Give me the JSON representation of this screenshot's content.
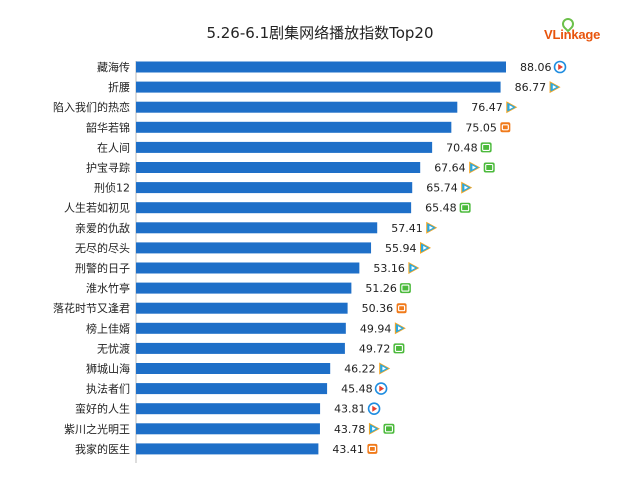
{
  "brand": {
    "logo_text": "VLinkage"
  },
  "colors": {
    "bar": "#1e6fc8",
    "axis": "#bbbbbb"
  },
  "chart_data": {
    "type": "bar",
    "orientation": "horizontal",
    "title": "5.26-6.1剧集网络播放指数Top20",
    "xlabel": "",
    "ylabel": "",
    "xlim": [
      0,
      90
    ],
    "grid": false,
    "categories": [
      "藏海传",
      "折腰",
      "陷入我们的热恋",
      "韶华若锦",
      "在人间",
      "护宝寻踪",
      "刑侦12",
      "人生若如初见",
      "亲爱的仇敌",
      "无尽的尽头",
      "刑警的日子",
      "淮水竹亭",
      "落花时节又逢君",
      "榜上佳婿",
      "无忧渡",
      "狮城山海",
      "执法者们",
      "蛮好的人生",
      "紫川之光明王",
      "我家的医生"
    ],
    "values": [
      88.06,
      86.77,
      76.47,
      75.05,
      70.48,
      67.64,
      65.74,
      65.48,
      57.41,
      55.94,
      53.16,
      51.26,
      50.36,
      49.94,
      49.72,
      46.22,
      45.48,
      43.81,
      43.78,
      43.41
    ],
    "value_labels": [
      "88.06",
      "86.77",
      "76.47",
      "75.05",
      "70.48",
      "67.64",
      "65.74",
      "65.48",
      "57.41",
      "55.94",
      "53.16",
      "51.26",
      "50.36",
      "49.94",
      "49.72",
      "46.22",
      "45.48",
      "43.81",
      "43.78",
      "43.41"
    ],
    "platforms": [
      [
        "youku-icon"
      ],
      [
        "tencent-video-icon"
      ],
      [
        "tencent-video-icon"
      ],
      [
        "mango-tv-icon"
      ],
      [
        "iqiyi-icon"
      ],
      [
        "tencent-video-icon",
        "iqiyi-icon"
      ],
      [
        "tencent-video-icon"
      ],
      [
        "iqiyi-icon"
      ],
      [
        "tencent-video-icon"
      ],
      [
        "tencent-video-icon"
      ],
      [
        "tencent-video-icon"
      ],
      [
        "iqiyi-icon"
      ],
      [
        "mango-tv-icon"
      ],
      [
        "tencent-video-icon"
      ],
      [
        "iqiyi-icon"
      ],
      [
        "tencent-video-icon"
      ],
      [
        "youku-icon"
      ],
      [
        "youku-icon"
      ],
      [
        "tencent-video-icon",
        "iqiyi-icon"
      ],
      [
        "mango-tv-icon"
      ]
    ],
    "platform_colors": {
      "tencent-video-icon": "#29a8e0",
      "youku-icon": "#1f8de0",
      "iqiyi-icon": "#4cba3c",
      "mango-tv-icon": "#f07a1a"
    }
  }
}
